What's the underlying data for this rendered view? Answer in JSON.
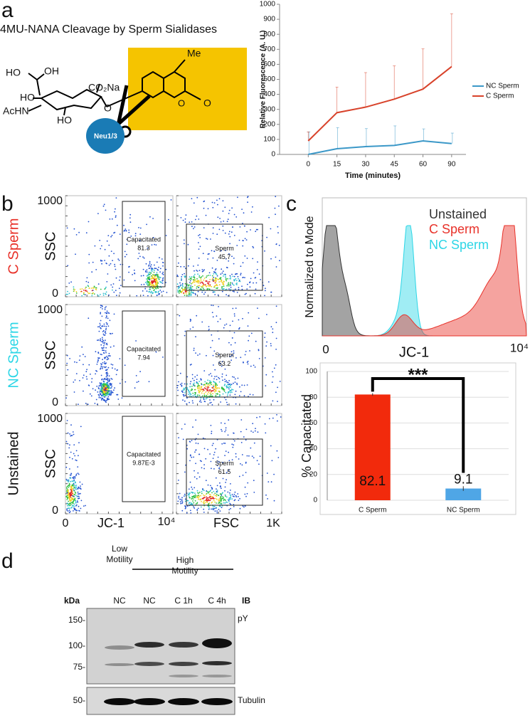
{
  "panel_labels": [
    "a",
    "b",
    "c",
    "d"
  ],
  "panel_a": {
    "title": "4MU-NANA Cleavage by Sperm Sialidases",
    "structure_labels": [
      "Me",
      "HO",
      "OH",
      "HO",
      "CO₂Na",
      "AcHN",
      "HO",
      "O",
      "O",
      "O",
      "Neu1/3"
    ]
  },
  "chart_data": [
    {
      "type": "line",
      "ylabel": "Relative Fluorescence (A. U.)",
      "xlabel": "Time (minutes)",
      "categories": [
        "0",
        "15",
        "30",
        "45",
        "60",
        "90"
      ],
      "series": [
        {
          "name": "NC Sperm",
          "color": "#3b98c8",
          "values": [
            0,
            38,
            52,
            60,
            90,
            72
          ],
          "errors": [
            150,
            140,
            120,
            130,
            80,
            70
          ]
        },
        {
          "name": "C Sperm",
          "color": "#d8422a",
          "values": [
            90,
            278,
            315,
            368,
            435,
            585
          ],
          "errors": [
            60,
            170,
            230,
            222,
            268,
            352
          ]
        }
      ],
      "ylim": [
        0,
        1000
      ],
      "yticks": [
        0,
        100,
        200,
        300,
        400,
        500,
        600,
        700,
        800,
        900,
        1000
      ],
      "legend": "right"
    },
    {
      "type": "bar",
      "ylabel": "% Capacitated",
      "categories": [
        "C Sperm",
        "NC Sperm"
      ],
      "values": [
        82.1,
        9.1
      ],
      "errors": [
        1,
        1.8
      ],
      "colors": [
        "#f22a0c",
        "#4fa6e6"
      ],
      "ylim": [
        0,
        100
      ],
      "yticks": [
        0,
        20,
        40,
        60,
        80,
        100
      ],
      "grid": true,
      "annotation": "***"
    }
  ],
  "panel_b": {
    "y_axis_label": "SSC",
    "y_ticks": [
      "0",
      "1000"
    ],
    "rows": [
      {
        "label": "C Sperm",
        "color": "#e8322a",
        "gates": [
          {
            "name": "Capacitated",
            "value": "81.3"
          },
          {
            "name": "Sperm",
            "value": "45.7"
          }
        ]
      },
      {
        "label": "NC Sperm",
        "color": "#2dd6e6",
        "gates": [
          {
            "name": "Capacitated",
            "value": "7.94"
          },
          {
            "name": "Sperm",
            "value": "63.2"
          }
        ]
      },
      {
        "label": "Unstained",
        "color": "#111111",
        "gates": [
          {
            "name": "Capacitated",
            "value": "9.87E-3"
          },
          {
            "name": "Sperm",
            "value": "61.5"
          }
        ]
      }
    ],
    "x_axes": [
      {
        "label": "JC-1",
        "ticks": [
          "0",
          "10⁴"
        ]
      },
      {
        "label": "FSC",
        "ticks": [
          "1K"
        ]
      }
    ]
  },
  "panel_c": {
    "legend": [
      {
        "name": "Unstained",
        "color": "#333333"
      },
      {
        "name": "C Sperm",
        "color": "#e8322a"
      },
      {
        "name": "NC Sperm",
        "color": "#2dd6e6"
      }
    ],
    "y_axis_label": "Normalized to Mode",
    "x_axis_label": "JC-1",
    "x_ticks": [
      "0",
      "10⁴"
    ]
  },
  "panel_d": {
    "group_labels": [
      {
        "lines": [
          "Low",
          "Motility"
        ]
      },
      {
        "lines": [
          "High",
          "Motility"
        ]
      }
    ],
    "unit_label": "kDa",
    "lanes": [
      "NC",
      "NC",
      "C 1h",
      "C 4h"
    ],
    "ib_label": "IB",
    "markers": [
      "150-",
      "100-",
      "75-",
      "50-"
    ],
    "blot_labels": [
      "pY",
      "Tubulin"
    ]
  }
}
